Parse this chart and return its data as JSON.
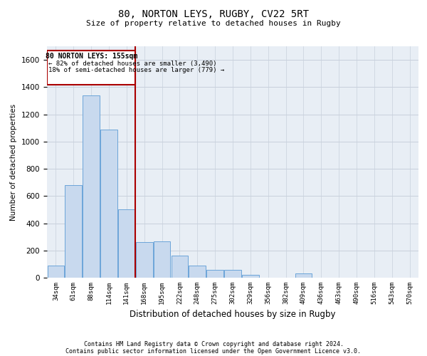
{
  "title1": "80, NORTON LEYS, RUGBY, CV22 5RT",
  "title2": "Size of property relative to detached houses in Rugby",
  "xlabel": "Distribution of detached houses by size in Rugby",
  "ylabel": "Number of detached properties",
  "footer1": "Contains HM Land Registry data © Crown copyright and database right 2024.",
  "footer2": "Contains public sector information licensed under the Open Government Licence v3.0.",
  "annotation_title": "80 NORTON LEYS: 155sqm",
  "annotation_line1": "← 82% of detached houses are smaller (3,490)",
  "annotation_line2": "18% of semi-detached houses are larger (779) →",
  "bar_color": "#c8d9ee",
  "bar_edge_color": "#5b9bd5",
  "vline_color": "#aa0000",
  "vline_x": 4.5,
  "categories": [
    "34sqm",
    "61sqm",
    "88sqm",
    "114sqm",
    "141sqm",
    "168sqm",
    "195sqm",
    "222sqm",
    "248sqm",
    "275sqm",
    "302sqm",
    "329sqm",
    "356sqm",
    "382sqm",
    "409sqm",
    "436sqm",
    "463sqm",
    "490sqm",
    "516sqm",
    "543sqm",
    "570sqm"
  ],
  "values": [
    90,
    680,
    1340,
    1090,
    500,
    260,
    265,
    160,
    90,
    60,
    60,
    20,
    0,
    0,
    30,
    0,
    0,
    0,
    0,
    0,
    0
  ],
  "ylim": [
    0,
    1700
  ],
  "yticks": [
    0,
    200,
    400,
    600,
    800,
    1000,
    1200,
    1400,
    1600
  ],
  "grid_color": "#c8d0dc",
  "bg_color": "#e8eef5"
}
